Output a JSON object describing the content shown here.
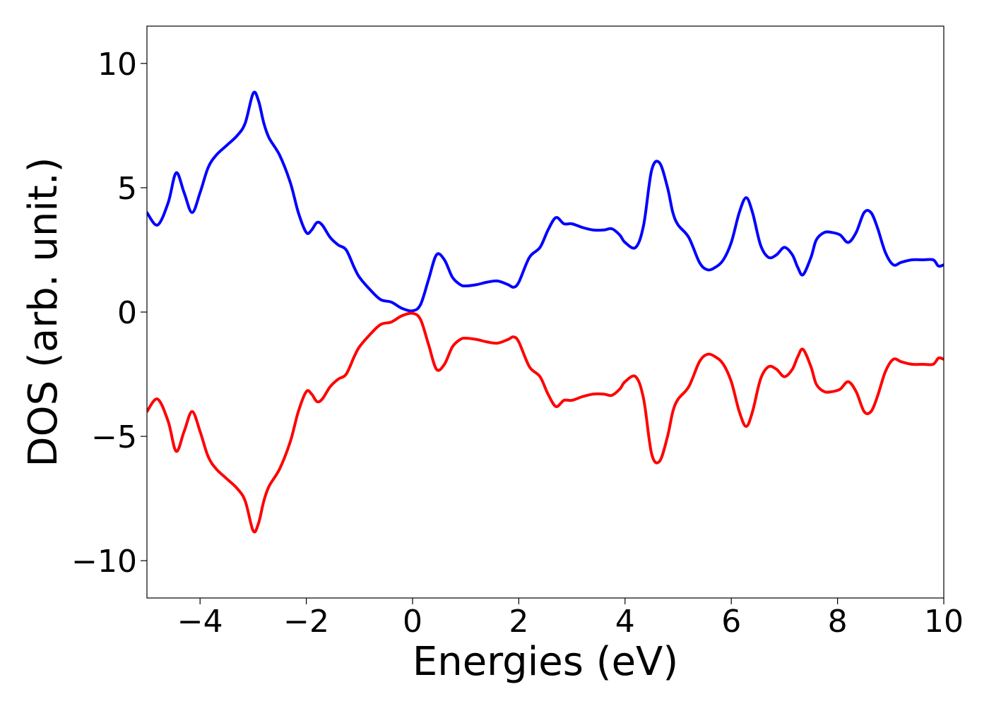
{
  "chart_data": {
    "type": "line",
    "title": "",
    "xlabel": "Energies (eV)",
    "ylabel": "DOS (arb. unit.)",
    "xlim": [
      -5,
      10
    ],
    "ylim": [
      -11.5,
      11.5
    ],
    "x_ticks": [
      -4,
      -2,
      0,
      2,
      4,
      6,
      8,
      10
    ],
    "x_tick_labels": [
      "−4",
      "−2",
      "0",
      "2",
      "4",
      "6",
      "8",
      "10"
    ],
    "y_ticks": [
      10,
      5,
      0,
      -5,
      -10
    ],
    "y_tick_labels": [
      "10",
      "5",
      "0",
      "−5",
      "−10"
    ],
    "grid": false,
    "legend": "none",
    "series": [
      {
        "color": "#0000ff",
        "x": [
          -5.0,
          -4.8,
          -4.6,
          -4.45,
          -4.3,
          -4.15,
          -4.0,
          -3.85,
          -3.7,
          -3.5,
          -3.3,
          -3.15,
          -3.0,
          -2.9,
          -2.8,
          -2.7,
          -2.5,
          -2.3,
          -2.15,
          -2.0,
          -1.9,
          -1.8,
          -1.7,
          -1.55,
          -1.4,
          -1.25,
          -1.1,
          -1.0,
          -0.8,
          -0.6,
          -0.4,
          -0.2,
          0.0,
          0.15,
          0.3,
          0.45,
          0.6,
          0.75,
          0.9,
          1.0,
          1.2,
          1.4,
          1.6,
          1.8,
          1.9,
          2.0,
          2.2,
          2.4,
          2.55,
          2.7,
          2.85,
          3.0,
          3.2,
          3.4,
          3.6,
          3.75,
          3.9,
          4.0,
          4.2,
          4.35,
          4.5,
          4.65,
          4.8,
          4.9,
          5.0,
          5.2,
          5.4,
          5.55,
          5.7,
          5.85,
          6.0,
          6.15,
          6.28,
          6.4,
          6.55,
          6.7,
          6.85,
          7.0,
          7.15,
          7.25,
          7.35,
          7.5,
          7.6,
          7.75,
          7.9,
          8.05,
          8.2,
          8.35,
          8.5,
          8.63,
          8.75,
          8.9,
          9.05,
          9.2,
          9.4,
          9.6,
          9.8,
          9.9,
          10.0
        ],
        "y": [
          4.0,
          3.5,
          4.4,
          5.6,
          4.8,
          4.0,
          4.8,
          5.8,
          6.3,
          6.7,
          7.1,
          7.6,
          8.8,
          8.5,
          7.6,
          7.0,
          6.3,
          5.2,
          4.0,
          3.2,
          3.3,
          3.6,
          3.5,
          3.0,
          2.7,
          2.5,
          1.8,
          1.4,
          0.9,
          0.5,
          0.4,
          0.15,
          0.05,
          0.3,
          1.3,
          2.3,
          2.1,
          1.4,
          1.1,
          1.05,
          1.1,
          1.2,
          1.25,
          1.1,
          1.0,
          1.2,
          2.2,
          2.6,
          3.3,
          3.8,
          3.55,
          3.55,
          3.4,
          3.3,
          3.3,
          3.35,
          3.1,
          2.8,
          2.6,
          3.5,
          5.7,
          6.0,
          5.0,
          4.0,
          3.5,
          3.0,
          2.0,
          1.7,
          1.8,
          2.1,
          2.8,
          4.0,
          4.6,
          4.0,
          2.7,
          2.2,
          2.3,
          2.6,
          2.3,
          1.8,
          1.5,
          2.2,
          2.9,
          3.2,
          3.2,
          3.1,
          2.8,
          3.2,
          4.0,
          4.0,
          3.4,
          2.4,
          1.9,
          2.0,
          2.1,
          2.1,
          2.1,
          1.85,
          1.9
        ]
      },
      {
        "color": "#ff0000",
        "x": [
          -5.0,
          -4.8,
          -4.6,
          -4.45,
          -4.3,
          -4.15,
          -4.0,
          -3.85,
          -3.7,
          -3.5,
          -3.3,
          -3.15,
          -3.0,
          -2.9,
          -2.8,
          -2.7,
          -2.5,
          -2.3,
          -2.15,
          -2.0,
          -1.9,
          -1.8,
          -1.7,
          -1.55,
          -1.4,
          -1.25,
          -1.1,
          -1.0,
          -0.8,
          -0.6,
          -0.4,
          -0.2,
          0.0,
          0.15,
          0.3,
          0.45,
          0.6,
          0.75,
          0.9,
          1.0,
          1.2,
          1.4,
          1.6,
          1.8,
          1.9,
          2.0,
          2.2,
          2.4,
          2.55,
          2.7,
          2.85,
          3.0,
          3.2,
          3.4,
          3.6,
          3.75,
          3.9,
          4.0,
          4.2,
          4.35,
          4.5,
          4.65,
          4.8,
          4.9,
          5.0,
          5.2,
          5.4,
          5.55,
          5.7,
          5.85,
          6.0,
          6.15,
          6.28,
          6.4,
          6.55,
          6.7,
          6.85,
          7.0,
          7.15,
          7.25,
          7.35,
          7.5,
          7.6,
          7.75,
          7.9,
          8.05,
          8.2,
          8.35,
          8.5,
          8.63,
          8.75,
          8.9,
          9.05,
          9.2,
          9.4,
          9.6,
          9.8,
          9.9,
          10.0
        ],
        "y": [
          -4.0,
          -3.5,
          -4.4,
          -5.6,
          -4.8,
          -4.0,
          -4.8,
          -5.8,
          -6.3,
          -6.7,
          -7.1,
          -7.6,
          -8.8,
          -8.5,
          -7.6,
          -7.0,
          -6.3,
          -5.2,
          -4.0,
          -3.2,
          -3.3,
          -3.6,
          -3.5,
          -3.0,
          -2.7,
          -2.5,
          -1.8,
          -1.4,
          -0.9,
          -0.5,
          -0.4,
          -0.15,
          -0.05,
          -0.3,
          -1.3,
          -2.3,
          -2.1,
          -1.4,
          -1.1,
          -1.05,
          -1.1,
          -1.2,
          -1.25,
          -1.1,
          -1.0,
          -1.2,
          -2.2,
          -2.6,
          -3.3,
          -3.8,
          -3.55,
          -3.55,
          -3.4,
          -3.3,
          -3.3,
          -3.35,
          -3.1,
          -2.8,
          -2.6,
          -3.5,
          -5.7,
          -6.0,
          -5.0,
          -4.0,
          -3.5,
          -3.0,
          -2.0,
          -1.7,
          -1.8,
          -2.1,
          -2.8,
          -4.0,
          -4.6,
          -4.0,
          -2.7,
          -2.2,
          -2.3,
          -2.6,
          -2.3,
          -1.8,
          -1.5,
          -2.2,
          -2.9,
          -3.2,
          -3.2,
          -3.1,
          -2.8,
          -3.2,
          -4.0,
          -4.0,
          -3.4,
          -2.4,
          -1.9,
          -2.0,
          -2.1,
          -2.1,
          -2.1,
          -1.85,
          -1.9
        ]
      }
    ]
  }
}
